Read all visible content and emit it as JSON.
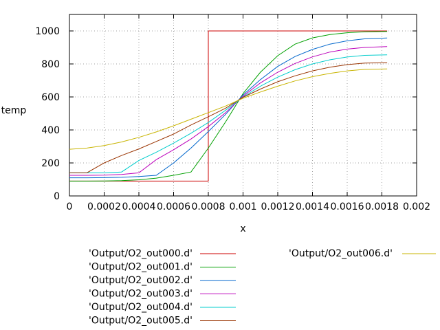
{
  "chart_data": {
    "type": "line",
    "xlabel": "x",
    "ylabel": "temp",
    "xlim": [
      0,
      0.002
    ],
    "ylim": [
      0,
      1100
    ],
    "xticks": [
      0,
      0.0002,
      0.0004,
      0.0006,
      0.0008,
      0.001,
      0.0012,
      0.0014,
      0.0016,
      0.0018,
      0.002
    ],
    "xtick_labels": [
      "0",
      "0.0002",
      "0.0004",
      "0.0006",
      "0.0008",
      "0.001",
      "0.0012",
      "0.0014",
      "0.0016",
      "0.0018",
      "0.002"
    ],
    "yticks": [
      0,
      200,
      400,
      600,
      800,
      1000
    ],
    "ytick_labels": [
      "0",
      "200",
      "400",
      "600",
      "800",
      "1000"
    ],
    "grid": true,
    "legend_position": "bottom",
    "x": [
      0,
      0.0001,
      0.0002,
      0.0003,
      0.0004,
      0.0005,
      0.0006,
      0.0007,
      0.0008,
      0.0009,
      0.001,
      0.0011,
      0.0012,
      0.0013,
      0.0014,
      0.0015,
      0.0016,
      0.0017,
      0.00183
    ],
    "series": [
      {
        "name": "'Output/O2_out000.d'",
        "color": "#cc0000",
        "values": [
          90,
          90,
          90,
          90,
          90,
          90,
          90,
          90,
          90,
          1000,
          1000,
          1000,
          1000,
          1000,
          1000,
          1000,
          1000,
          1000,
          1000
        ]
      },
      {
        "name": "'Output/O2_out001.d'",
        "color": "#00a000",
        "values": [
          90,
          90,
          91,
          93,
          98,
          108,
          125,
          145,
          290,
          450,
          620,
          750,
          850,
          920,
          958,
          978,
          989,
          995,
          997
        ]
      },
      {
        "name": "'Output/O2_out002.d'",
        "color": "#0066cc",
        "values": [
          110,
          110,
          111,
          113,
          118,
          125,
          200,
          290,
          390,
          495,
          612,
          705,
          785,
          845,
          888,
          920,
          940,
          952,
          957
        ]
      },
      {
        "name": "'Output/O2_out003.d'",
        "color": "#bb00bb",
        "values": [
          125,
          125,
          126,
          130,
          140,
          220,
          280,
          345,
          420,
          505,
          605,
          685,
          750,
          803,
          843,
          872,
          890,
          900,
          905
        ]
      },
      {
        "name": "'Output/O2_out004.d'",
        "color": "#00cccc",
        "values": [
          140,
          140,
          140,
          145,
          215,
          265,
          320,
          380,
          445,
          520,
          600,
          665,
          720,
          765,
          800,
          825,
          842,
          852,
          855
        ]
      },
      {
        "name": "'Output/O2_out005.d'",
        "color": "#993300",
        "values": [
          140,
          140,
          200,
          245,
          285,
          330,
          375,
          430,
          480,
          532,
          598,
          648,
          692,
          728,
          758,
          780,
          796,
          805,
          808
        ]
      },
      {
        "name": "'Output/O2_out006.d'",
        "color": "#c8b400",
        "values": [
          283,
          290,
          305,
          327,
          355,
          388,
          425,
          465,
          505,
          545,
          592,
          630,
          665,
          697,
          723,
          743,
          758,
          767,
          770
        ]
      }
    ]
  }
}
